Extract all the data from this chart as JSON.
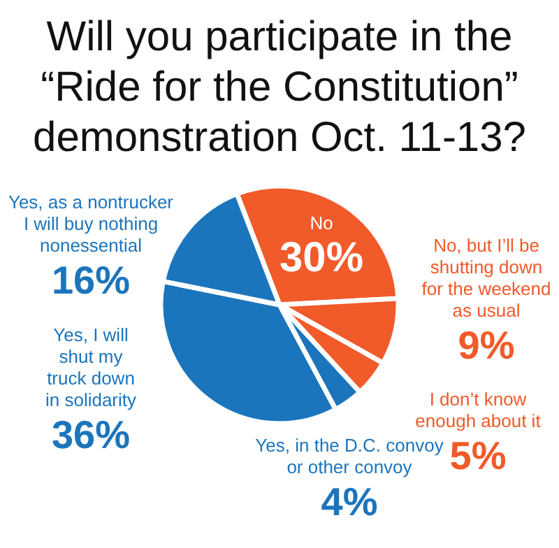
{
  "chart_data": {
    "type": "pie",
    "title": "Will you participate in the “Ride for the Constitution” demonstration Oct. 11-13?",
    "categories": [
      "No",
      "No, but I’ll be shutting down for the weekend as usual",
      "I don’t know enough about it",
      "Yes, in the D.C. convoy or other convoy",
      "Yes, I will shut my truck down in solidarity",
      "Yes, as a nontrucker I will buy nothing nonessential"
    ],
    "values": [
      30,
      9,
      5,
      4,
      36,
      16
    ],
    "colors": [
      "#f15a29",
      "#f15a29",
      "#f15a29",
      "#1b75bc",
      "#1b75bc",
      "#1b75bc"
    ],
    "value_labels": [
      "30%",
      "9%",
      "5%",
      "4%",
      "36%",
      "16%"
    ],
    "data_labels": true
  }
}
